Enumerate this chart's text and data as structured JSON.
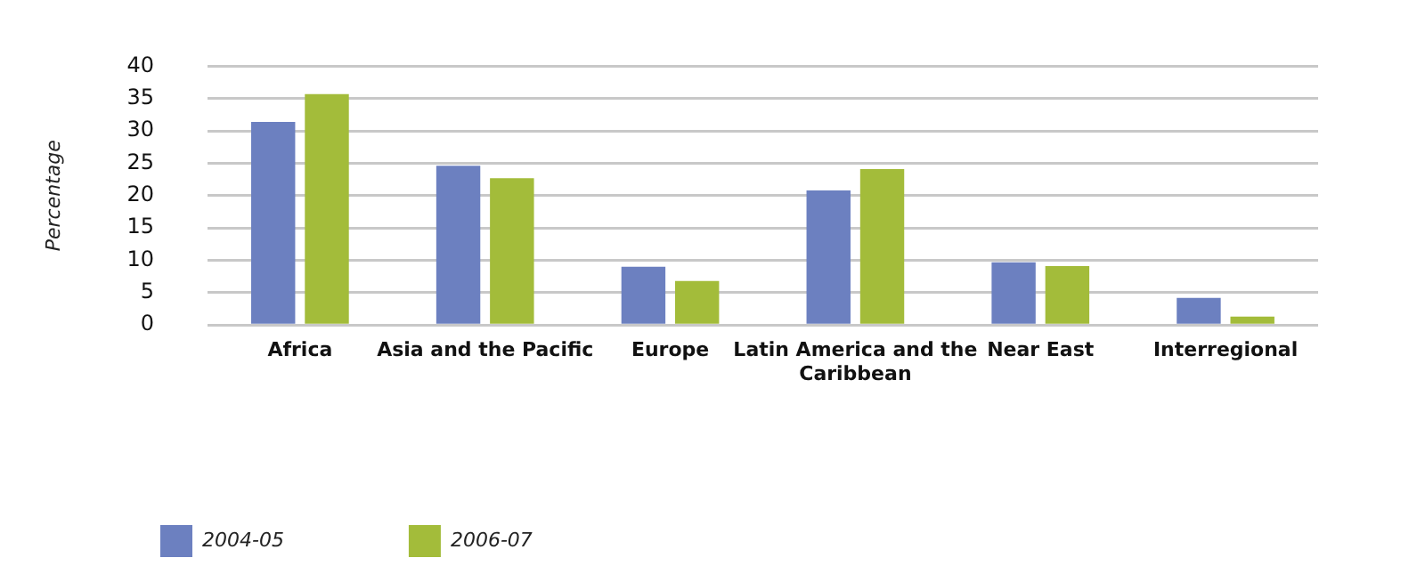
{
  "chart_data": {
    "type": "bar",
    "ylabel": "Percentage",
    "categories": [
      "Africa",
      "Asia and the Pacific",
      "Europe",
      "Latin America and the Caribbean",
      "Near East",
      "Interregional"
    ],
    "series": [
      {
        "name": "2004-05",
        "color": "#6c80c0",
        "values": [
          31.4,
          24.6,
          9.0,
          20.8,
          9.7,
          4.2
        ]
      },
      {
        "name": "2006-07",
        "color": "#a3bc3a",
        "values": [
          35.7,
          22.7,
          6.8,
          24.1,
          9.1,
          1.3
        ]
      }
    ],
    "ylim": [
      0,
      40
    ],
    "yticks": [
      0,
      5,
      10,
      15,
      20,
      25,
      30,
      35,
      40
    ],
    "grid": "y",
    "legend": "bottom left"
  }
}
